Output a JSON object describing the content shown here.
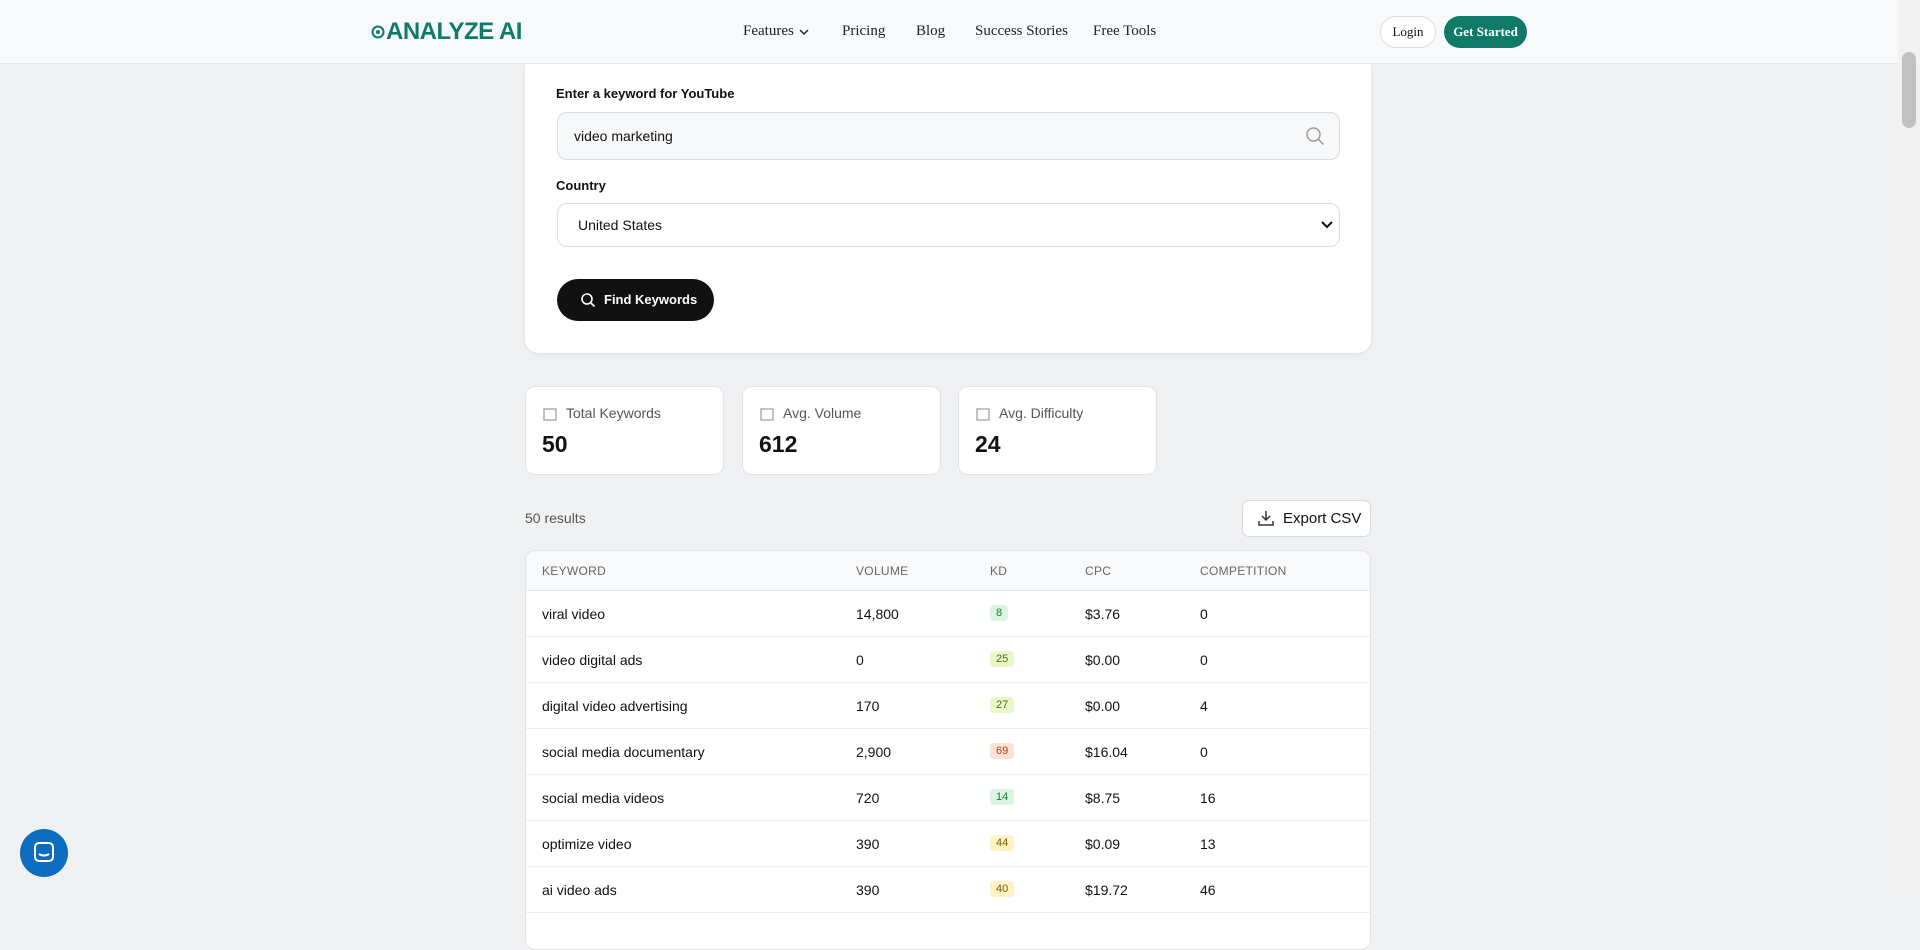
{
  "header": {
    "logo": "ANALYZE AI",
    "nav": [
      "Features",
      "Pricing",
      "Blog",
      "Success Stories",
      "Free Tools"
    ],
    "login": "Login",
    "cta": "Get Started"
  },
  "form": {
    "keyword_label": "Enter a keyword for YouTube",
    "keyword_value": "video marketing",
    "country_label": "Country",
    "country_value": "United States",
    "button": "Find Keywords"
  },
  "stats": [
    {
      "label": "Total Keywords",
      "value": "50"
    },
    {
      "label": "Avg. Volume",
      "value": "612"
    },
    {
      "label": "Avg. Difficulty",
      "value": "24"
    }
  ],
  "results": {
    "count": "50 results",
    "export": "Export CSV"
  },
  "table": {
    "columns": [
      "KEYWORD",
      "VOLUME",
      "KD",
      "CPC",
      "COMPETITION"
    ],
    "rows": [
      [
        "viral video",
        "14,800",
        "8",
        "$3.76",
        "0"
      ],
      [
        "video digital ads",
        "0",
        "25",
        "$0.00",
        "0"
      ],
      [
        "digital video advertising",
        "170",
        "27",
        "$0.00",
        "4"
      ],
      [
        "social media documentary",
        "2,900",
        "69",
        "$16.04",
        "0"
      ],
      [
        "social media videos",
        "720",
        "14",
        "$8.75",
        "16"
      ],
      [
        "optimize video",
        "390",
        "44",
        "$0.09",
        "13"
      ],
      [
        "ai video ads",
        "390",
        "40",
        "$19.72",
        "46"
      ]
    ]
  }
}
